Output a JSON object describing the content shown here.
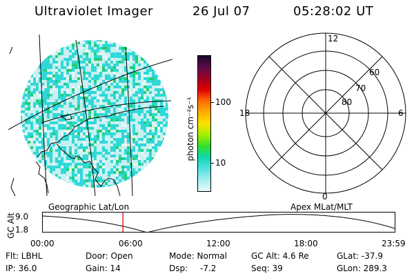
{
  "header": {
    "instrument": "Ultraviolet Imager",
    "date": "26 Jul 07",
    "time": "05:28:02 UT"
  },
  "colorbar": {
    "unit_label": "photon cm⁻²s⁻¹",
    "tick_labels": [
      "100",
      "10"
    ],
    "colors": [
      "#1a0a2a",
      "#5a0a4a",
      "#a00020",
      "#e00000",
      "#ff6a00",
      "#ffb000",
      "#ffe000",
      "#a8f000",
      "#30e030",
      "#10d8b0",
      "#50e0e0",
      "#a8f0f0",
      "#e8f8f8"
    ]
  },
  "polar_plot": {
    "hour_labels": {
      "top": "12",
      "left": "18",
      "right": "6",
      "bottom": "0"
    },
    "lat_labels": [
      "60",
      "70",
      "80"
    ]
  },
  "timeline": {
    "ylabel": "GC Alt",
    "ytick_labels": [
      "9.0",
      "1.8"
    ],
    "left_title": "Geographic Lat/Lon",
    "right_title": "Apex MLat/MLT",
    "xtick_labels": [
      "00:00",
      "06:00",
      "12:00",
      "18:00",
      "23:59"
    ],
    "current_time_fraction": 0.2278
  },
  "info": {
    "row1": {
      "filter": "Flt: LBHL",
      "door": "Door: Open",
      "mode": "Mode: Normal",
      "gc_alt": "GC Alt: 4.6 Re",
      "glat": "GLat: -37.9"
    },
    "row2": {
      "ip": "IP: 36.0",
      "gain": "Gain: 14",
      "dsp_label": "Dsp:",
      "dsp_value": "-7.2",
      "seq": "Seq: 39",
      "glon": "GLon: 289.3"
    }
  },
  "colors": {
    "noise_cyan": "#30d8d8",
    "noise_light": "#c8f0f0",
    "noise_green": "#20d070",
    "cursor": "#e00000"
  }
}
